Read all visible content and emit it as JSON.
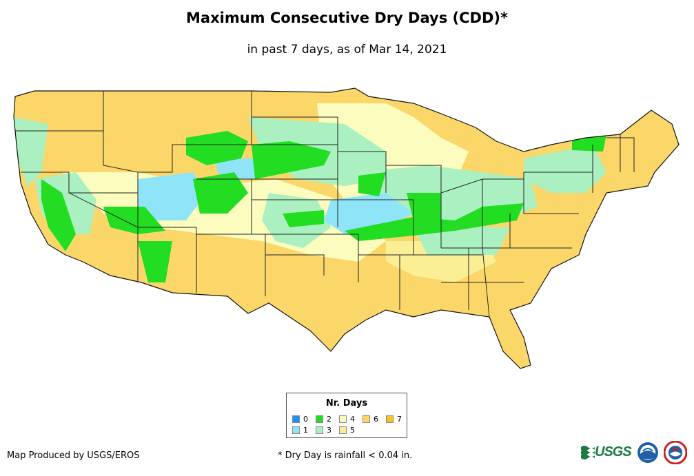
{
  "title": "Maximum Consecutive Dry Days (CDD)*",
  "subtitle": "in past 7 days, as of Mar 14, 2021",
  "map": {
    "region": "Contiguous United States",
    "colors": {
      "outline": "#222222",
      "ocean": "#ffffff"
    }
  },
  "legend": {
    "title": "Nr. Days",
    "items": [
      {
        "label": "0",
        "color": "#1e90ff"
      },
      {
        "label": "1",
        "color": "#8fe5f7"
      },
      {
        "label": "2",
        "color": "#22dd22"
      },
      {
        "label": "3",
        "color": "#aaf0c0"
      },
      {
        "label": "4",
        "color": "#fbfcbe"
      },
      {
        "label": "5",
        "color": "#fbef95"
      },
      {
        "label": "6",
        "color": "#fbd76a"
      },
      {
        "label": "7",
        "color": "#f6c21c"
      }
    ]
  },
  "footer": {
    "credit": "Map Produced by USGS/EROS",
    "note": "* Dry Day is rainfall < 0.04 in.",
    "logos": [
      "USGS",
      "NOAA",
      "NWS"
    ]
  }
}
